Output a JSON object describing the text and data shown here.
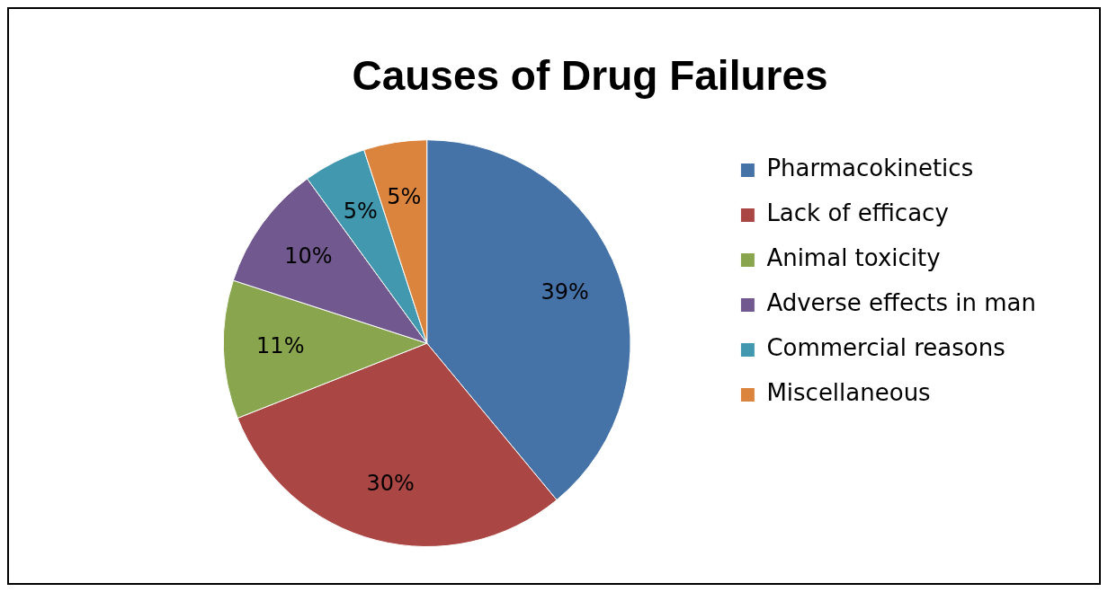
{
  "chart_data": {
    "type": "pie",
    "title": "Causes of Drug Failures",
    "categories": [
      "Pharmacokinetics",
      "Lack of efficacy",
      "Animal toxicity",
      "Adverse effects in man",
      "Commercial reasons",
      "Miscellaneous"
    ],
    "values": [
      39,
      30,
      11,
      10,
      5,
      5
    ],
    "value_labels": [
      "39%",
      "30%",
      "11%",
      "10%",
      "5%",
      "5%"
    ],
    "colors": [
      "#4572a7",
      "#aa4643",
      "#89a54e",
      "#71588f",
      "#4198af",
      "#db843d"
    ],
    "legend": "right"
  }
}
